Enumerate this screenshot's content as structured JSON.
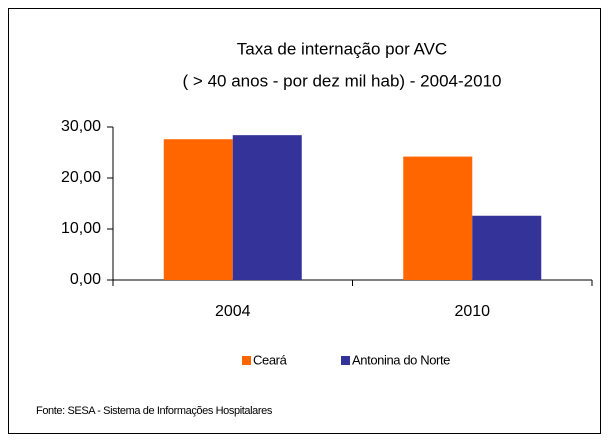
{
  "chart_data": {
    "type": "bar",
    "title": "Taxa de internação por AVC",
    "subtitle": "( > 40 anos - por dez mil hab) - 2004-2010",
    "categories": [
      "2004",
      "2010"
    ],
    "series": [
      {
        "name": "Ceará",
        "color": "#ff6600",
        "values": [
          27.6,
          24.2
        ]
      },
      {
        "name": "Antonina do Norte",
        "color": "#333399",
        "values": [
          28.4,
          12.6
        ]
      }
    ],
    "ylim": [
      0,
      30
    ],
    "yticks": [
      {
        "value": 0,
        "label": "0,00"
      },
      {
        "value": 10,
        "label": "10,00"
      },
      {
        "value": 20,
        "label": "20,00"
      },
      {
        "value": 30,
        "label": "30,00"
      }
    ],
    "grid": false,
    "legend": "bottom",
    "note": "Fonte: SESA - Sistema de Informações Hospitalares"
  }
}
